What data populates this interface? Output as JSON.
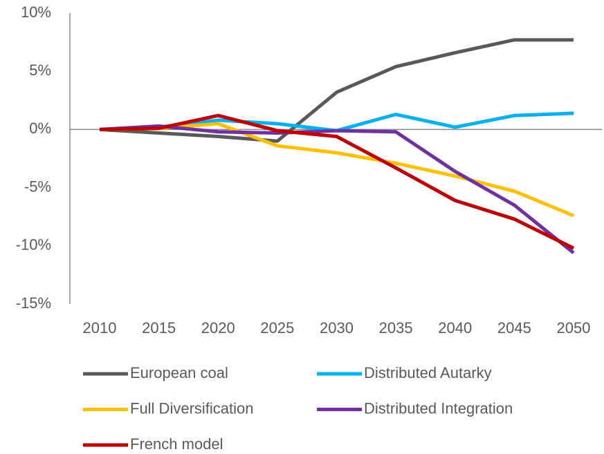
{
  "chart_data": {
    "type": "line",
    "categories": [
      "2010",
      "2015",
      "2020",
      "2025",
      "2030",
      "2035",
      "2040",
      "2045",
      "2050"
    ],
    "series": [
      {
        "name": "European coal",
        "color": "#595959",
        "values": [
          0,
          -0.3,
          -0.6,
          -1.0,
          3.2,
          5.4,
          6.6,
          7.7,
          7.7
        ]
      },
      {
        "name": "Distributed Autarky",
        "color": "#00b0f0",
        "values": [
          0,
          0.2,
          0.8,
          0.5,
          -0.1,
          1.3,
          0.2,
          1.2,
          1.4
        ]
      },
      {
        "name": "Full Diversification",
        "color": "#ffc000",
        "values": [
          0,
          0.1,
          0.5,
          -1.4,
          -2.0,
          -2.9,
          -4.0,
          -5.3,
          -7.4
        ]
      },
      {
        "name": "Distributed Integration",
        "color": "#7030a0",
        "values": [
          0,
          0.3,
          -0.2,
          -0.3,
          -0.1,
          -0.2,
          -3.6,
          -6.5,
          -10.6
        ]
      },
      {
        "name": "French model",
        "color": "#c00000",
        "values": [
          0,
          0.1,
          1.2,
          -0.1,
          -0.6,
          -3.3,
          -6.1,
          -7.7,
          -10.2
        ]
      }
    ],
    "ylim": [
      -15,
      10
    ],
    "yticks": [
      {
        "value": 10,
        "label": "10%"
      },
      {
        "value": 5,
        "label": "5%"
      },
      {
        "value": 0,
        "label": "0%"
      },
      {
        "value": -5,
        "label": "-5%"
      },
      {
        "value": -10,
        "label": "-10%"
      },
      {
        "value": -15,
        "label": "-15%"
      }
    ],
    "legend": "bottom"
  }
}
